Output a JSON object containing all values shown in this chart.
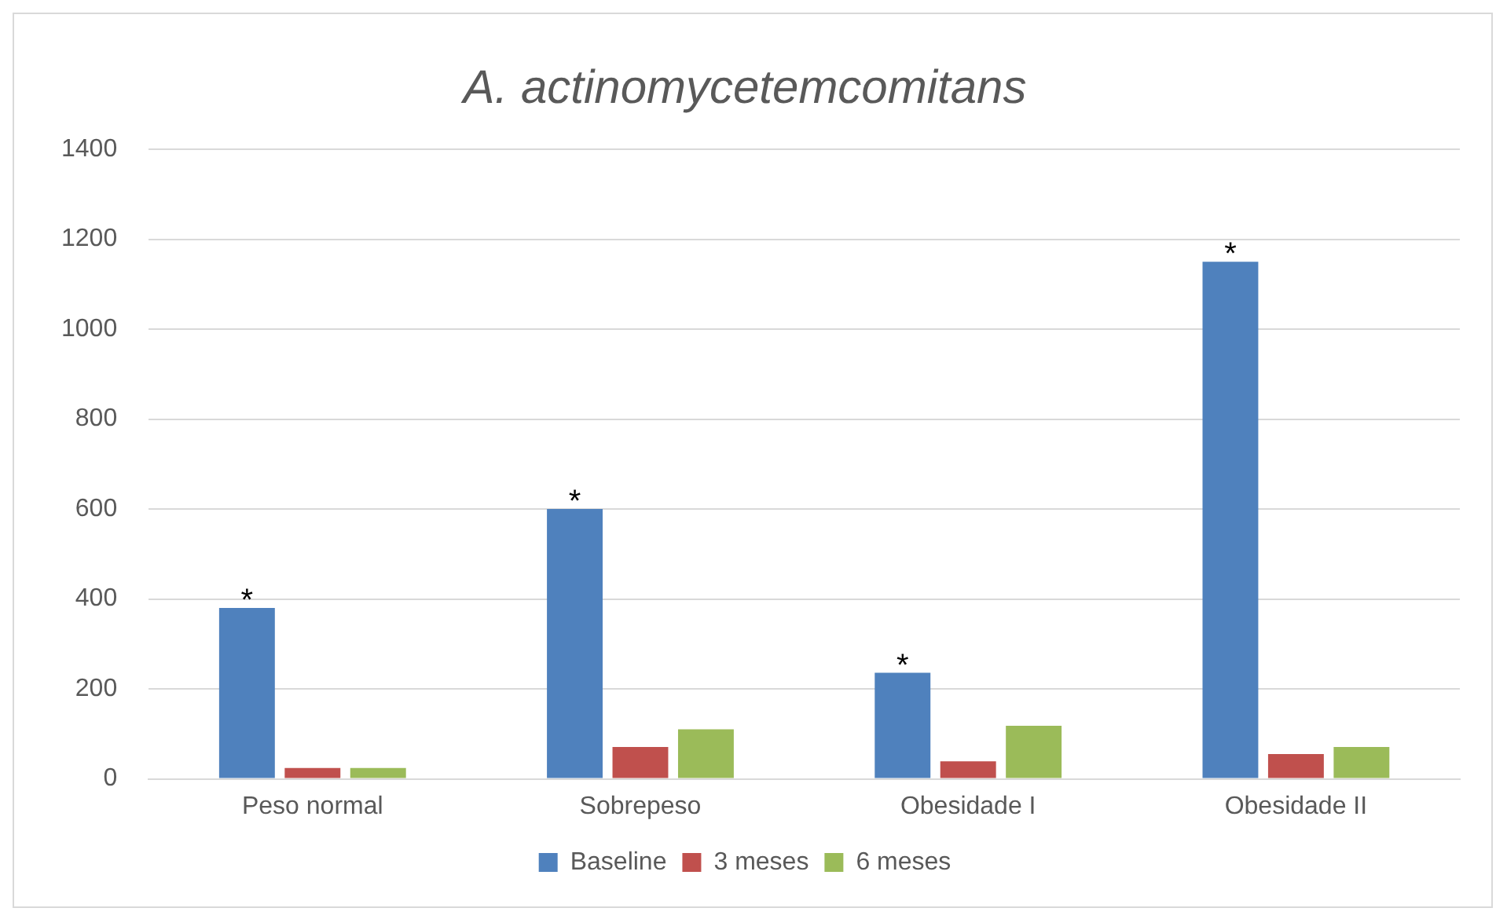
{
  "chart_data": {
    "type": "bar",
    "title": "A. actinomycetemcomitans",
    "categories": [
      "Peso normal",
      "Sobrepeso",
      "Obesidade I",
      "Obesidade II"
    ],
    "series": [
      {
        "name": "Baseline",
        "color": "#4f81bd",
        "values": [
          380,
          600,
          236,
          1150
        ]
      },
      {
        "name": "3 meses",
        "color": "#c0504d",
        "values": [
          24,
          71,
          39,
          55
        ]
      },
      {
        "name": "6 meses",
        "color": "#9bbb59",
        "values": [
          24,
          110,
          118,
          71
        ]
      }
    ],
    "ylim": [
      0,
      1400
    ],
    "yticks": [
      0,
      200,
      400,
      600,
      800,
      1000,
      1200,
      1400
    ],
    "grid": "y",
    "legend": "bottom",
    "annotations": [
      "*",
      "*",
      "*",
      "*"
    ]
  }
}
